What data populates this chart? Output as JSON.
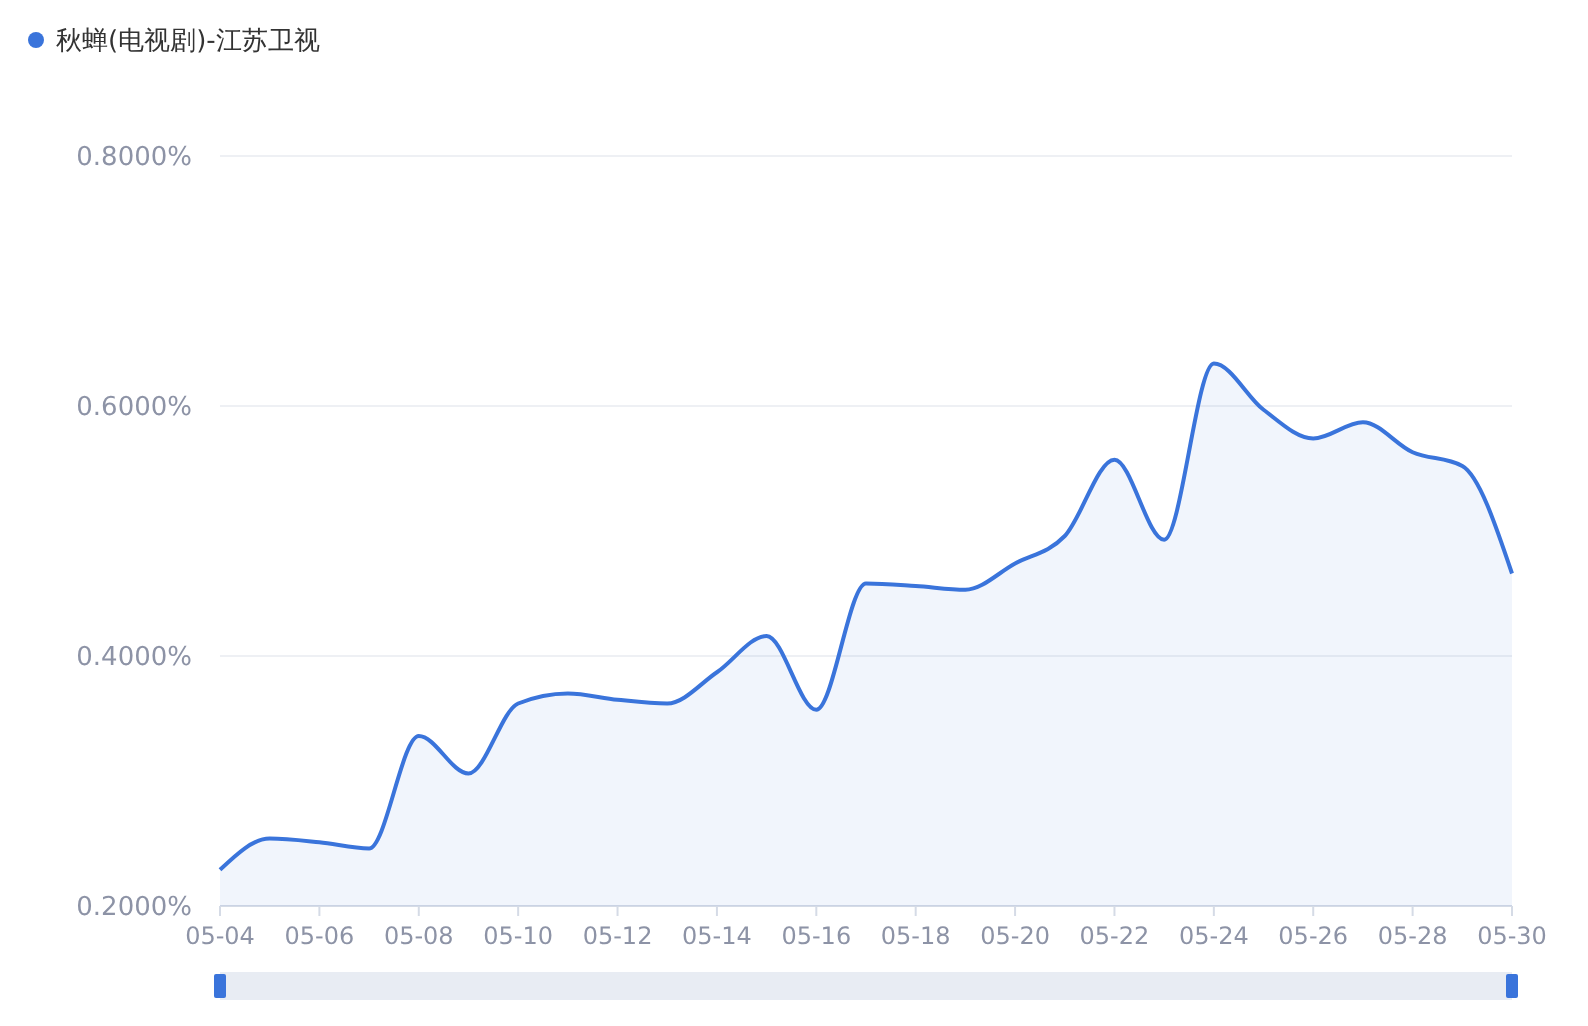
{
  "chart_data": {
    "type": "area",
    "categories": [
      "05-04",
      null,
      "05-06",
      null,
      "05-08",
      null,
      "05-10",
      null,
      "05-12",
      null,
      "05-14",
      null,
      "05-16",
      null,
      "05-18",
      null,
      "05-20",
      null,
      "05-22",
      null,
      "05-24",
      null,
      "05-26",
      null,
      "05-28",
      null,
      "05-30"
    ],
    "series": [
      {
        "name": "秋蝉(电视剧)-江苏卫视",
        "color": "#3a74db",
        "values": [
          0.229,
          0.254,
          0.251,
          0.246,
          0.336,
          0.306,
          0.362,
          0.37,
          0.365,
          0.362,
          0.387,
          0.416,
          0.357,
          0.458,
          0.456,
          0.453,
          0.474,
          0.496,
          0.557,
          0.493,
          0.634,
          0.597,
          0.574,
          0.587,
          0.563,
          0.552,
          0.466
        ]
      }
    ],
    "ylim": [
      0.2,
      0.8
    ],
    "yticks": [
      {
        "value": 0.2,
        "label": "0.2000%"
      },
      {
        "value": 0.4,
        "label": "0.4000%"
      },
      {
        "value": 0.6,
        "label": "0.6000%"
      },
      {
        "value": 0.8,
        "label": "0.8000%"
      }
    ],
    "grid": "y",
    "legend": "top left",
    "marker": "none"
  }
}
